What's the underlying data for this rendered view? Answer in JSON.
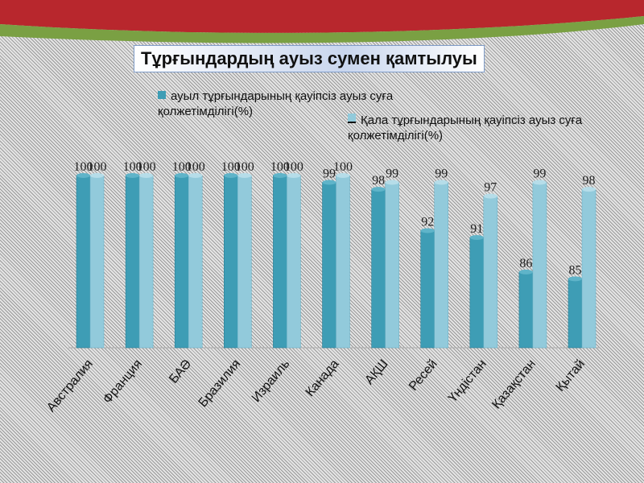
{
  "chart_data": {
    "type": "bar",
    "title": "Тұрғындардың ауыз сумен қамтылуы",
    "categories": [
      "Австралия",
      "Франция",
      "БАӘ",
      "Бразилия",
      "Израиль",
      "Канада",
      "АҚШ",
      "Ресей",
      "Үндістан",
      "Қазақстан",
      "Қытай"
    ],
    "series": [
      {
        "name": "ауыл тұрғындарының қауіпсіз ауыз суға қолжетімділігі(%)",
        "color": "#3e9db5",
        "values": [
          100,
          100,
          100,
          100,
          100,
          99,
          98,
          92,
          91,
          86,
          85
        ]
      },
      {
        "name": "Қала тұрғындарының қауіпсіз ауыз суға қолжетімділігі(%)",
        "color": "#92cadb",
        "values": [
          100,
          100,
          100,
          100,
          100,
          100,
          99,
          99,
          97,
          99,
          98
        ]
      }
    ],
    "ylim": [
      75,
      100
    ],
    "grid": false,
    "legend": "top"
  }
}
